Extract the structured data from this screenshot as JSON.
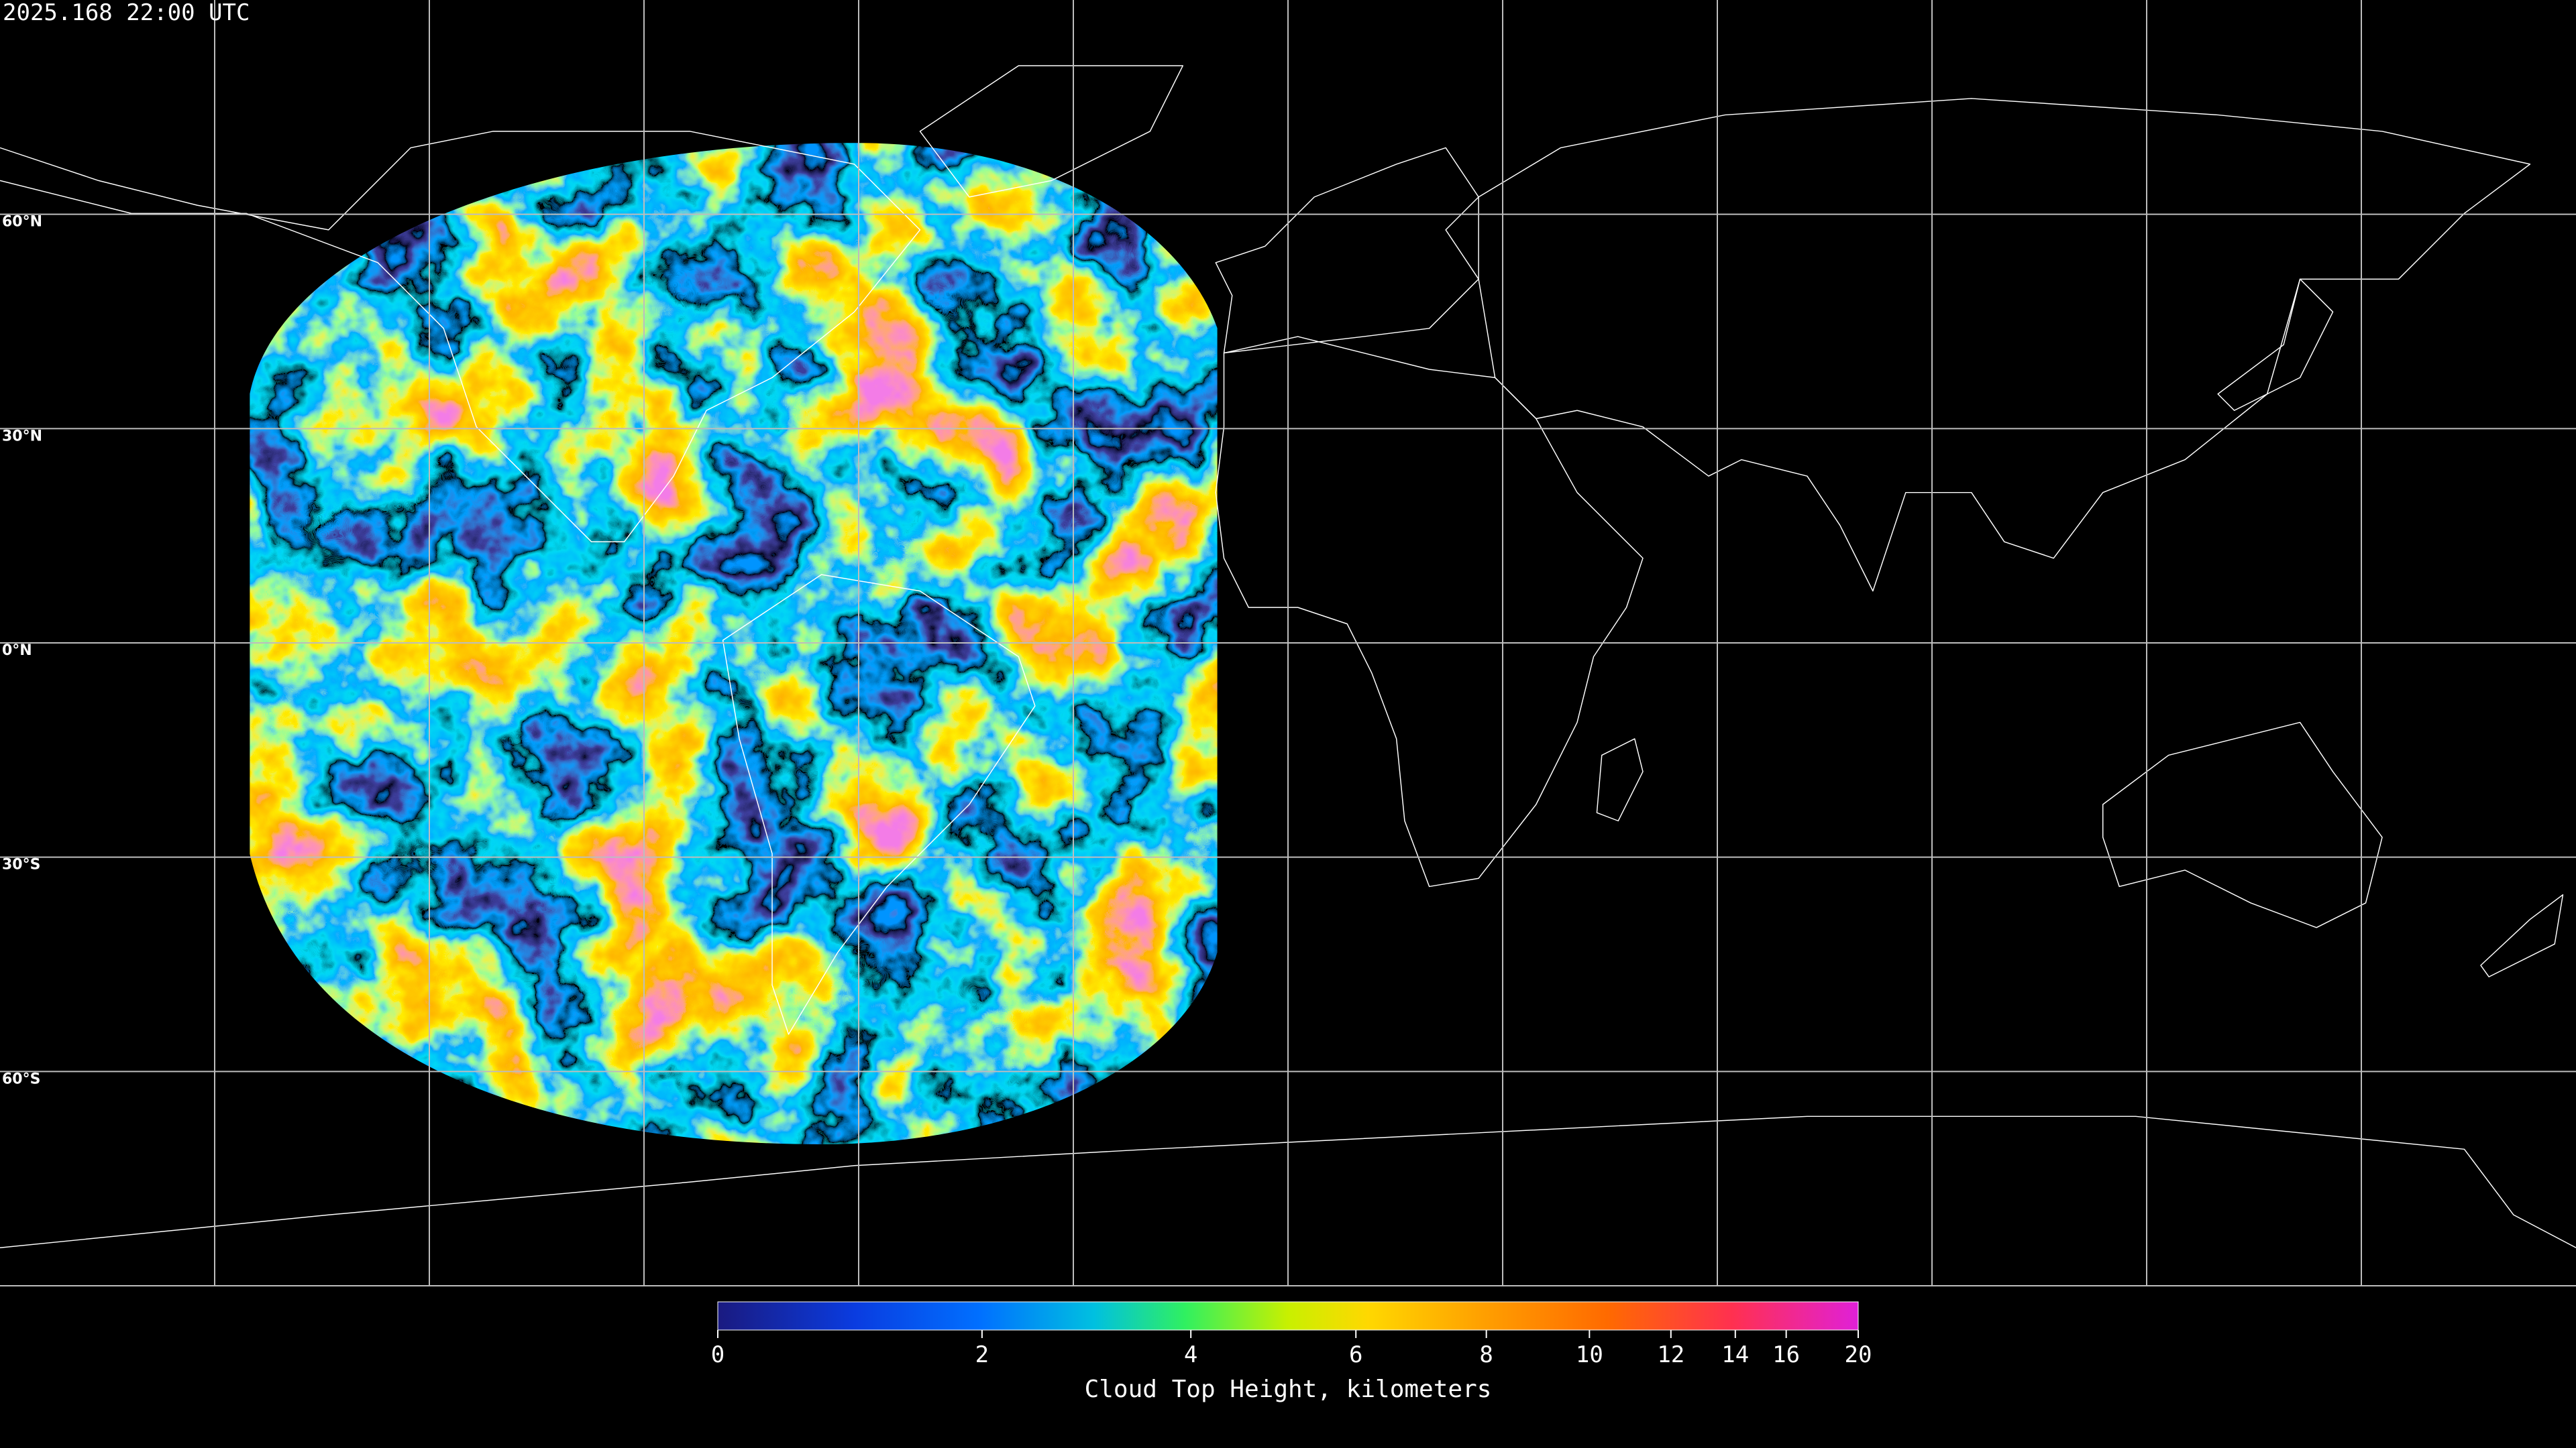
{
  "map": {
    "timestamp": "2025.168 22:00 UTC",
    "xlim": [
      -180,
      180
    ],
    "ylim": [
      -90,
      90
    ],
    "lat_lines": [
      {
        "value": 60,
        "label": "60°N"
      },
      {
        "value": 30,
        "label": "30°N"
      },
      {
        "value": 0,
        "label": "0°N"
      },
      {
        "value": -30,
        "label": "30°S"
      },
      {
        "value": -60,
        "label": "60°S"
      }
    ],
    "lon_lines": [
      -150,
      -120,
      -90,
      -60,
      -30,
      0,
      30,
      60,
      90,
      120,
      150
    ]
  },
  "colorbar": {
    "title": "Cloud Top Height, kilometers",
    "clim": [
      0,
      20
    ],
    "ticks": [
      0,
      2,
      4,
      6,
      8,
      10,
      12,
      14,
      16,
      20
    ]
  }
}
